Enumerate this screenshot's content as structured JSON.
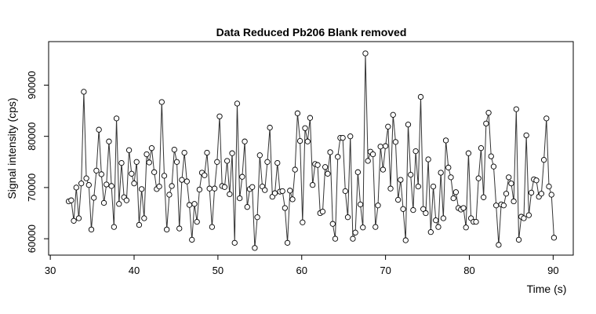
{
  "chart_data": {
    "type": "line",
    "title": "Data Reduced Pb206 Blank removed",
    "x_label": "Time (s)",
    "y_label": "Signal intensity (cps)",
    "x": [
      32.2,
      32.5,
      32.8,
      33.1,
      33.4,
      33.7,
      34,
      34.3,
      34.6,
      34.9,
      35.2,
      35.5,
      35.8,
      36.1,
      36.4,
      36.7,
      37,
      37.3,
      37.6,
      37.9,
      38.2,
      38.5,
      38.8,
      39.1,
      39.4,
      39.7,
      40,
      40.3,
      40.6,
      40.9,
      41.2,
      41.5,
      41.8,
      42.1,
      42.4,
      42.7,
      43,
      43.3,
      43.6,
      43.9,
      44.2,
      44.5,
      44.8,
      45.1,
      45.4,
      45.7,
      46,
      46.3,
      46.6,
      46.9,
      47.2,
      47.5,
      47.8,
      48.1,
      48.4,
      48.7,
      49,
      49.3,
      49.6,
      49.9,
      50.2,
      50.5,
      50.8,
      51.1,
      51.4,
      51.7,
      52,
      52.3,
      52.6,
      52.9,
      53.2,
      53.5,
      53.8,
      54.1,
      54.4,
      54.7,
      55,
      55.3,
      55.6,
      55.9,
      56.2,
      56.5,
      56.8,
      57.1,
      57.4,
      57.7,
      58,
      58.3,
      58.6,
      58.9,
      59.2,
      59.5,
      59.8,
      60.1,
      60.4,
      60.7,
      61,
      61.3,
      61.6,
      61.9,
      62.2,
      62.5,
      62.8,
      63.1,
      63.4,
      63.7,
      64,
      64.3,
      64.6,
      64.9,
      65.2,
      65.5,
      65.8,
      66.1,
      66.4,
      66.7,
      67,
      67.3,
      67.6,
      67.9,
      68.2,
      68.5,
      68.8,
      69.1,
      69.4,
      69.7,
      70,
      70.3,
      70.6,
      70.9,
      71.2,
      71.5,
      71.8,
      72.1,
      72.4,
      72.7,
      73,
      73.3,
      73.6,
      73.9,
      74.2,
      74.5,
      74.8,
      75.1,
      75.4,
      75.7,
      76,
      76.3,
      76.6,
      76.9,
      77.2,
      77.5,
      77.8,
      78.1,
      78.4,
      78.7,
      79,
      79.3,
      79.6,
      79.9,
      80.2,
      80.5,
      80.8,
      81.1,
      81.4,
      81.7,
      82,
      82.3,
      82.6,
      82.9,
      83.2,
      83.5,
      83.8,
      84.1,
      84.4,
      84.7,
      85,
      85.3,
      85.6,
      85.9,
      86.2,
      86.5,
      86.8,
      87.1,
      87.4,
      87.7,
      88,
      88.3,
      88.6,
      88.9,
      89.2,
      89.5,
      89.8,
      90.1
    ],
    "values": [
      67300,
      67500,
      63500,
      70000,
      64000,
      70800,
      88700,
      71800,
      70500,
      61800,
      68000,
      73300,
      81300,
      72600,
      67000,
      70600,
      79000,
      70300,
      62300,
      83500,
      66800,
      74800,
      68100,
      67500,
      77300,
      72700,
      70800,
      75000,
      62700,
      69700,
      64000,
      76500,
      74900,
      77700,
      73000,
      69700,
      70200,
      86700,
      72300,
      61800,
      68600,
      70300,
      77400,
      75000,
      62000,
      71500,
      76800,
      71200,
      66600,
      59800,
      66800,
      63300,
      69600,
      72900,
      72400,
      76800,
      69800,
      62300,
      69800,
      75000,
      83900,
      70300,
      70100,
      75200,
      68700,
      76700,
      59200,
      86400,
      67900,
      72100,
      79000,
      66200,
      69700,
      70100,
      58200,
      64200,
      76300,
      70200,
      69500,
      75000,
      81700,
      68200,
      68900,
      74800,
      69200,
      69300,
      66000,
      59200,
      69400,
      67700,
      73500,
      84500,
      79100,
      63200,
      81600,
      79000,
      83600,
      70500,
      74600,
      74400,
      65000,
      65300,
      74000,
      72700,
      76900,
      62900,
      60000,
      76000,
      79700,
      79700,
      69300,
      64200,
      80000,
      60000,
      61200,
      73000,
      66700,
      62200,
      96200,
      75200,
      77000,
      76500,
      62300,
      66500,
      78000,
      73500,
      78100,
      81900,
      69800,
      84200,
      78900,
      67600,
      71500,
      65800,
      59700,
      82300,
      72500,
      65600,
      77100,
      70200,
      87700,
      65800,
      65000,
      75500,
      61300,
      70200,
      63600,
      62300,
      72900,
      64000,
      79200,
      73900,
      72000,
      67900,
      69100,
      66000,
      65700,
      66000,
      62200,
      76700,
      64000,
      63300,
      63300,
      71800,
      77700,
      68100,
      82500,
      84600,
      76100,
      74100,
      66500,
      58800,
      66700,
      66500,
      68800,
      72000,
      70800,
      67300,
      85300,
      59800,
      64300,
      64000,
      80200,
      64600,
      69000,
      71600,
      71400,
      68200,
      68800,
      75400,
      83500,
      70200,
      68600,
      60200
    ],
    "color": "#333333",
    "xlim": [
      29.8,
      92.4
    ],
    "ylim": [
      56800,
      98500
    ],
    "xticks": [
      30,
      40,
      50,
      60,
      70,
      80,
      90
    ],
    "yticks": [
      60000,
      70000,
      80000,
      90000
    ]
  }
}
